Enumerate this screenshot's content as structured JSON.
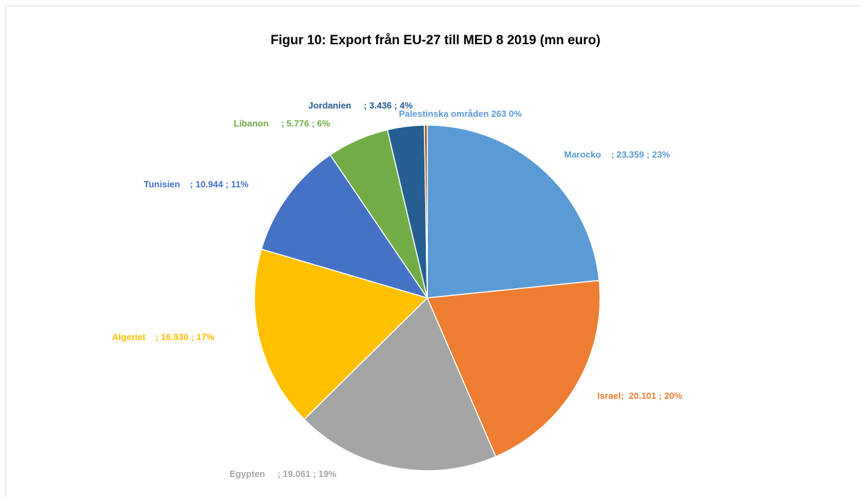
{
  "chart_data": {
    "type": "pie",
    "title": "Figur 10: Export från EU-27 till MED 8 2019 (mn euro)",
    "values": [
      23359,
      20101,
      19061,
      16930,
      10944,
      5776,
      3436,
      263
    ],
    "value_labels": [
      "Marocko    ; 23.359 ; 23%",
      "Israel;  20.101 ; 20%",
      "Egypten     ; 19.061 ; 19%",
      "Algeriet    ; 16.930 ; 17%",
      "Tunisien    ; 10.944 ; 11%",
      "Libanon     ; 5.776 ; 6%",
      "Jordanien     ; 3.436 ; 4%",
      "Palestinska områden 263 0%"
    ],
    "colors": [
      "#5b9bd5",
      "#ed7d31",
      "#a5a5a5",
      "#ffc000",
      "#4472c4",
      "#70ad47",
      "#255e91",
      "#9e480e"
    ]
  }
}
